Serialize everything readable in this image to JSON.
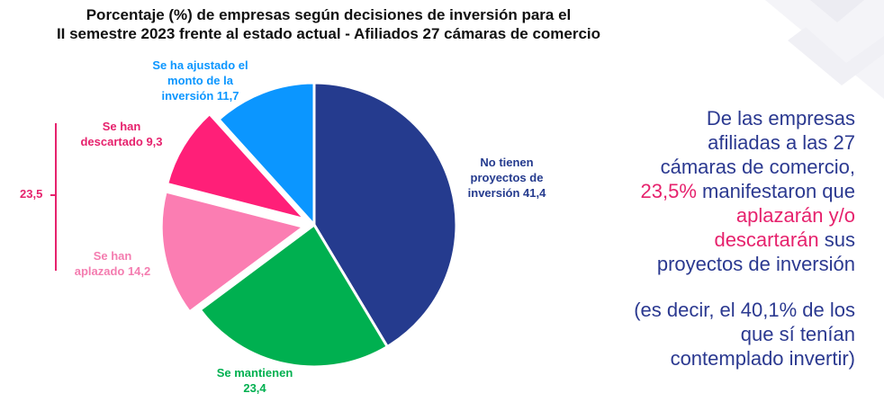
{
  "title": {
    "line1": "Porcentaje (%) de empresas según decisiones de inversión para el",
    "line2": "II semestre 2023 frente al estado actual -  Afiliados 27 cámaras de comercio"
  },
  "chart_data": {
    "type": "pie",
    "title": "Porcentaje (%) de empresas según decisiones de inversión para el II semestre 2023 frente al estado actual -  Afiliados 27 cámaras de comercio",
    "slices": [
      {
        "label_lines": [
          "No tienen",
          "proyectos de",
          "inversión 41,4"
        ],
        "value": 41.4,
        "color": "#253b8e"
      },
      {
        "label_lines": [
          "Se mantienen",
          "23,4"
        ],
        "value": 23.4,
        "color": "#00b050"
      },
      {
        "label_lines": [
          "Se han",
          "aplazado 14,2"
        ],
        "value": 14.2,
        "color": "#fb7db2"
      },
      {
        "label_lines": [
          "Se han",
          "descartado 9,3"
        ],
        "value": 9.3,
        "color": "#ff1f78"
      },
      {
        "label_lines": [
          "Se ha ajustado el",
          "monto de la",
          "inversión 11,7"
        ],
        "value": 11.7,
        "color": "#0b96ff"
      }
    ],
    "bracket_value": "23,5",
    "label_colors": [
      "#253b8e",
      "#00b050",
      "#f47db0",
      "#e6226d",
      "#0b96ff"
    ]
  },
  "summary": {
    "lines": [
      {
        "parts": [
          {
            "text": "De las empresas",
            "hl": false
          }
        ]
      },
      {
        "parts": [
          {
            "text": "afiliadas a las 27",
            "hl": false
          }
        ]
      },
      {
        "parts": [
          {
            "text": "cámaras de comercio,",
            "hl": false
          }
        ]
      },
      {
        "parts": [
          {
            "text": "23,5%",
            "hl": true
          },
          {
            "text": " manifestaron que",
            "hl": false
          }
        ]
      },
      {
        "parts": [
          {
            "text": "aplazarán y/o",
            "hl": true
          }
        ]
      },
      {
        "parts": [
          {
            "text": "descartarán",
            "hl": true
          },
          {
            "text": " sus",
            "hl": false
          }
        ]
      },
      {
        "parts": [
          {
            "text": "proyectos de inversión",
            "hl": false
          }
        ]
      },
      {
        "gap": true
      },
      {
        "parts": [
          {
            "text": "(es decir, el 40,1% de los",
            "hl": false
          }
        ]
      },
      {
        "parts": [
          {
            "text": "que sí tenían",
            "hl": false
          }
        ]
      },
      {
        "parts": [
          {
            "text": "contemplado invertir)",
            "hl": false
          }
        ]
      }
    ],
    "text_color": "#2b3990",
    "highlight_color": "#e6226d"
  }
}
